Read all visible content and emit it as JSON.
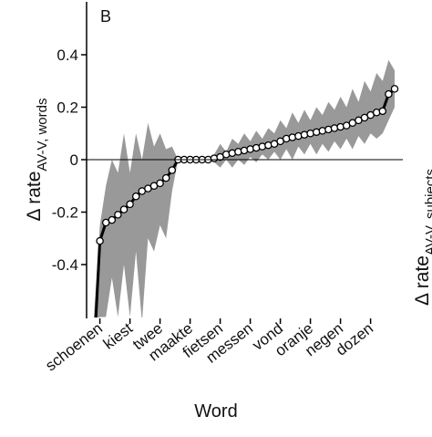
{
  "chart_data": {
    "type": "line",
    "panel_label": "B",
    "y_label": {
      "text": "Δ rate",
      "subscript": "AV-V, words"
    },
    "x_label": "Word",
    "right_label": {
      "text": "Δ rate",
      "subscript": "AV-V, subjects"
    },
    "categories": [
      null,
      "schoenen",
      null,
      null,
      null,
      null,
      "kiest",
      null,
      null,
      null,
      null,
      "twee",
      null,
      null,
      null,
      null,
      "maakte",
      null,
      null,
      null,
      null,
      "fietsen",
      null,
      null,
      null,
      null,
      "messen",
      null,
      null,
      null,
      null,
      "vond",
      null,
      null,
      null,
      null,
      "oranje",
      null,
      null,
      null,
      null,
      "negen",
      null,
      null,
      null,
      null,
      "dozen",
      null,
      null,
      null,
      null
    ],
    "values": [
      -0.75,
      -0.31,
      -0.24,
      -0.23,
      -0.21,
      -0.19,
      -0.17,
      -0.14,
      -0.12,
      -0.11,
      -0.1,
      -0.09,
      -0.07,
      -0.04,
      0,
      0,
      0,
      0,
      0,
      0,
      0.005,
      0.01,
      0.02,
      0.025,
      0.03,
      0.035,
      0.04,
      0.045,
      0.05,
      0.055,
      0.06,
      0.07,
      0.08,
      0.085,
      0.09,
      0.095,
      0.1,
      0.105,
      0.11,
      0.115,
      0.12,
      0.125,
      0.13,
      0.14,
      0.15,
      0.16,
      0.17,
      0.18,
      0.185,
      0.25,
      0.27
    ],
    "band_upper": [
      -0.6,
      -0.25,
      -0.1,
      0,
      -0.05,
      0.1,
      -0.05,
      0.1,
      0,
      0.14,
      0.05,
      0.1,
      0.04,
      0.05,
      0,
      0,
      0,
      0,
      0,
      0,
      0.02,
      0.06,
      0.03,
      0.08,
      0.06,
      0.1,
      0.07,
      0.11,
      0.08,
      0.12,
      0.1,
      0.15,
      0.12,
      0.18,
      0.14,
      0.19,
      0.15,
      0.2,
      0.17,
      0.22,
      0.19,
      0.24,
      0.2,
      0.27,
      0.22,
      0.3,
      0.26,
      0.33,
      0.3,
      0.38,
      0.34
    ],
    "band_lower": [
      -0.9,
      -0.6,
      -0.6,
      -0.45,
      -0.6,
      -0.4,
      -0.6,
      -0.35,
      -0.62,
      -0.3,
      -0.35,
      -0.25,
      -0.3,
      -0.12,
      0,
      0,
      0,
      0,
      0,
      0,
      -0.01,
      -0.03,
      0,
      -0.03,
      0,
      -0.02,
      0.01,
      -0.01,
      0.02,
      0,
      0.03,
      0,
      0.04,
      0,
      0.05,
      0.02,
      0.06,
      0.02,
      0.06,
      0.03,
      0.07,
      0.04,
      0.08,
      0.04,
      0.09,
      0.06,
      0.1,
      0.08,
      0.1,
      0.15,
      0.2
    ],
    "color": "#000000",
    "band_color": "#999999",
    "ylim": [
      -0.6,
      0.6
    ],
    "yticks": [
      -0.4,
      -0.2,
      0,
      0.2,
      0.4
    ],
    "zero_line": true
  }
}
